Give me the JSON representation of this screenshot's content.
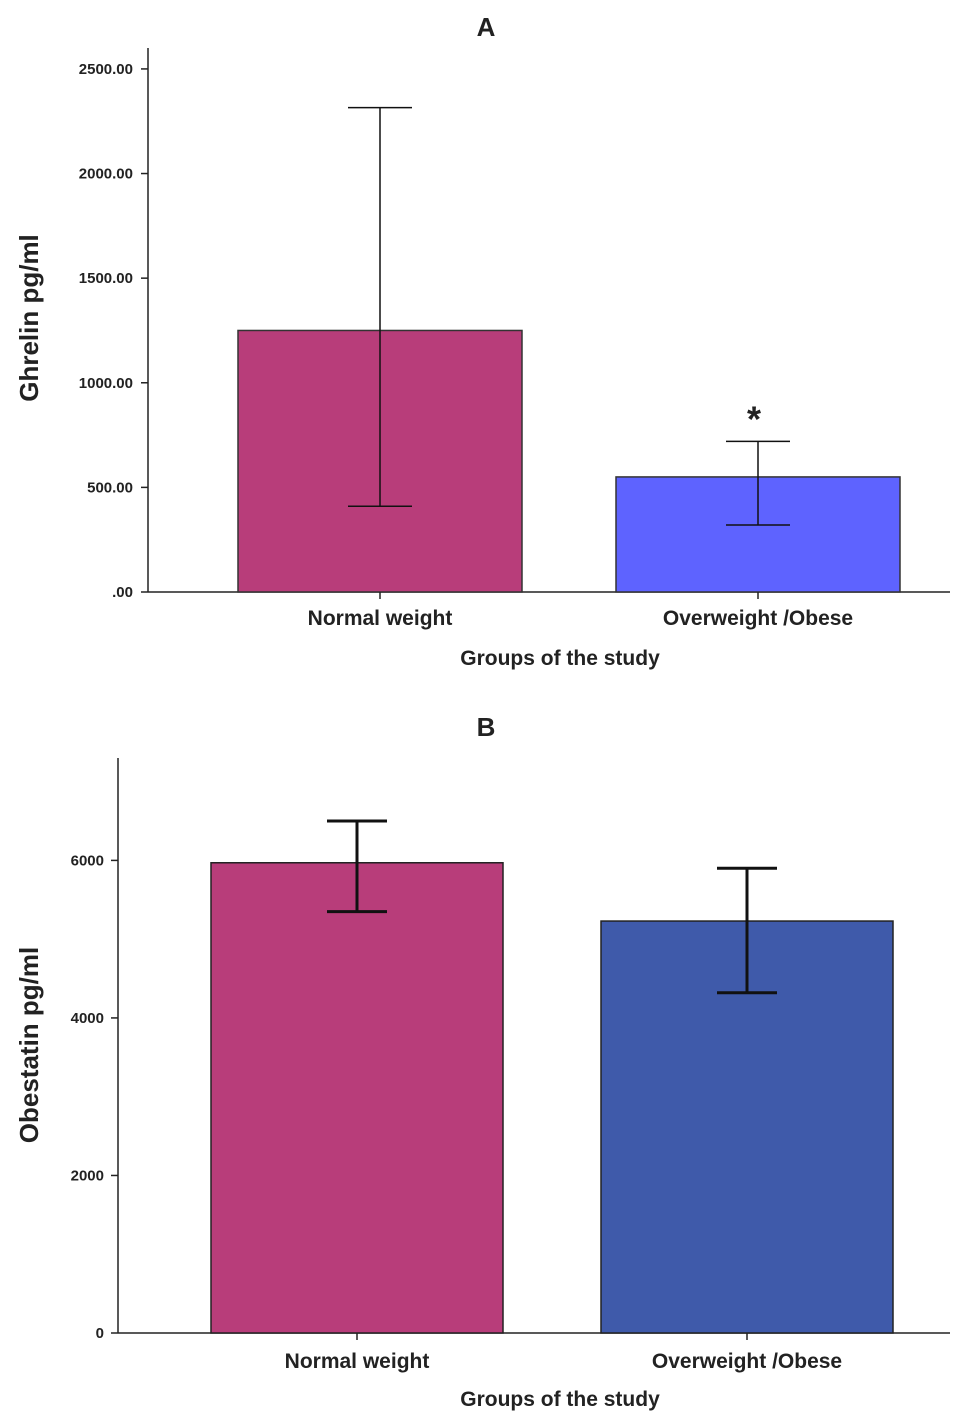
{
  "chart_data": [
    {
      "type": "bar",
      "panel_label": "A",
      "xlabel": "Groups of the study",
      "ylabel": "Ghrelin pg/ml",
      "categories": [
        "Normal weight",
        "Overweight /Obese"
      ],
      "values": [
        1250,
        550
      ],
      "error_low": [
        410,
        320
      ],
      "error_high": [
        2315,
        720
      ],
      "colors": [
        "#b83d7a",
        "#5e63ff"
      ],
      "ylim": [
        0,
        2600
      ],
      "yticks": [
        0,
        500,
        1000,
        1500,
        2000,
        2500
      ],
      "ytick_labels": [
        ".00",
        "500.00",
        "1000.00",
        "1500.00",
        "2000.00",
        "2500.00"
      ],
      "annotations": [
        {
          "category": "Overweight /Obese",
          "text": "*"
        }
      ],
      "grid": false
    },
    {
      "type": "bar",
      "panel_label": "B",
      "xlabel": "Groups of the study",
      "ylabel": "Obestatin pg/ml",
      "categories": [
        "Normal weight",
        "Overweight /Obese"
      ],
      "values": [
        5970,
        5230
      ],
      "error_low": [
        5350,
        4320
      ],
      "error_high": [
        6500,
        5900
      ],
      "colors": [
        "#b83d7a",
        "#3f5aaa"
      ],
      "ylim": [
        0,
        7300
      ],
      "yticks": [
        0,
        2000,
        4000,
        6000
      ],
      "ytick_labels": [
        "0",
        "2000",
        "4000",
        "6000"
      ],
      "annotations": [],
      "grid": false
    }
  ]
}
